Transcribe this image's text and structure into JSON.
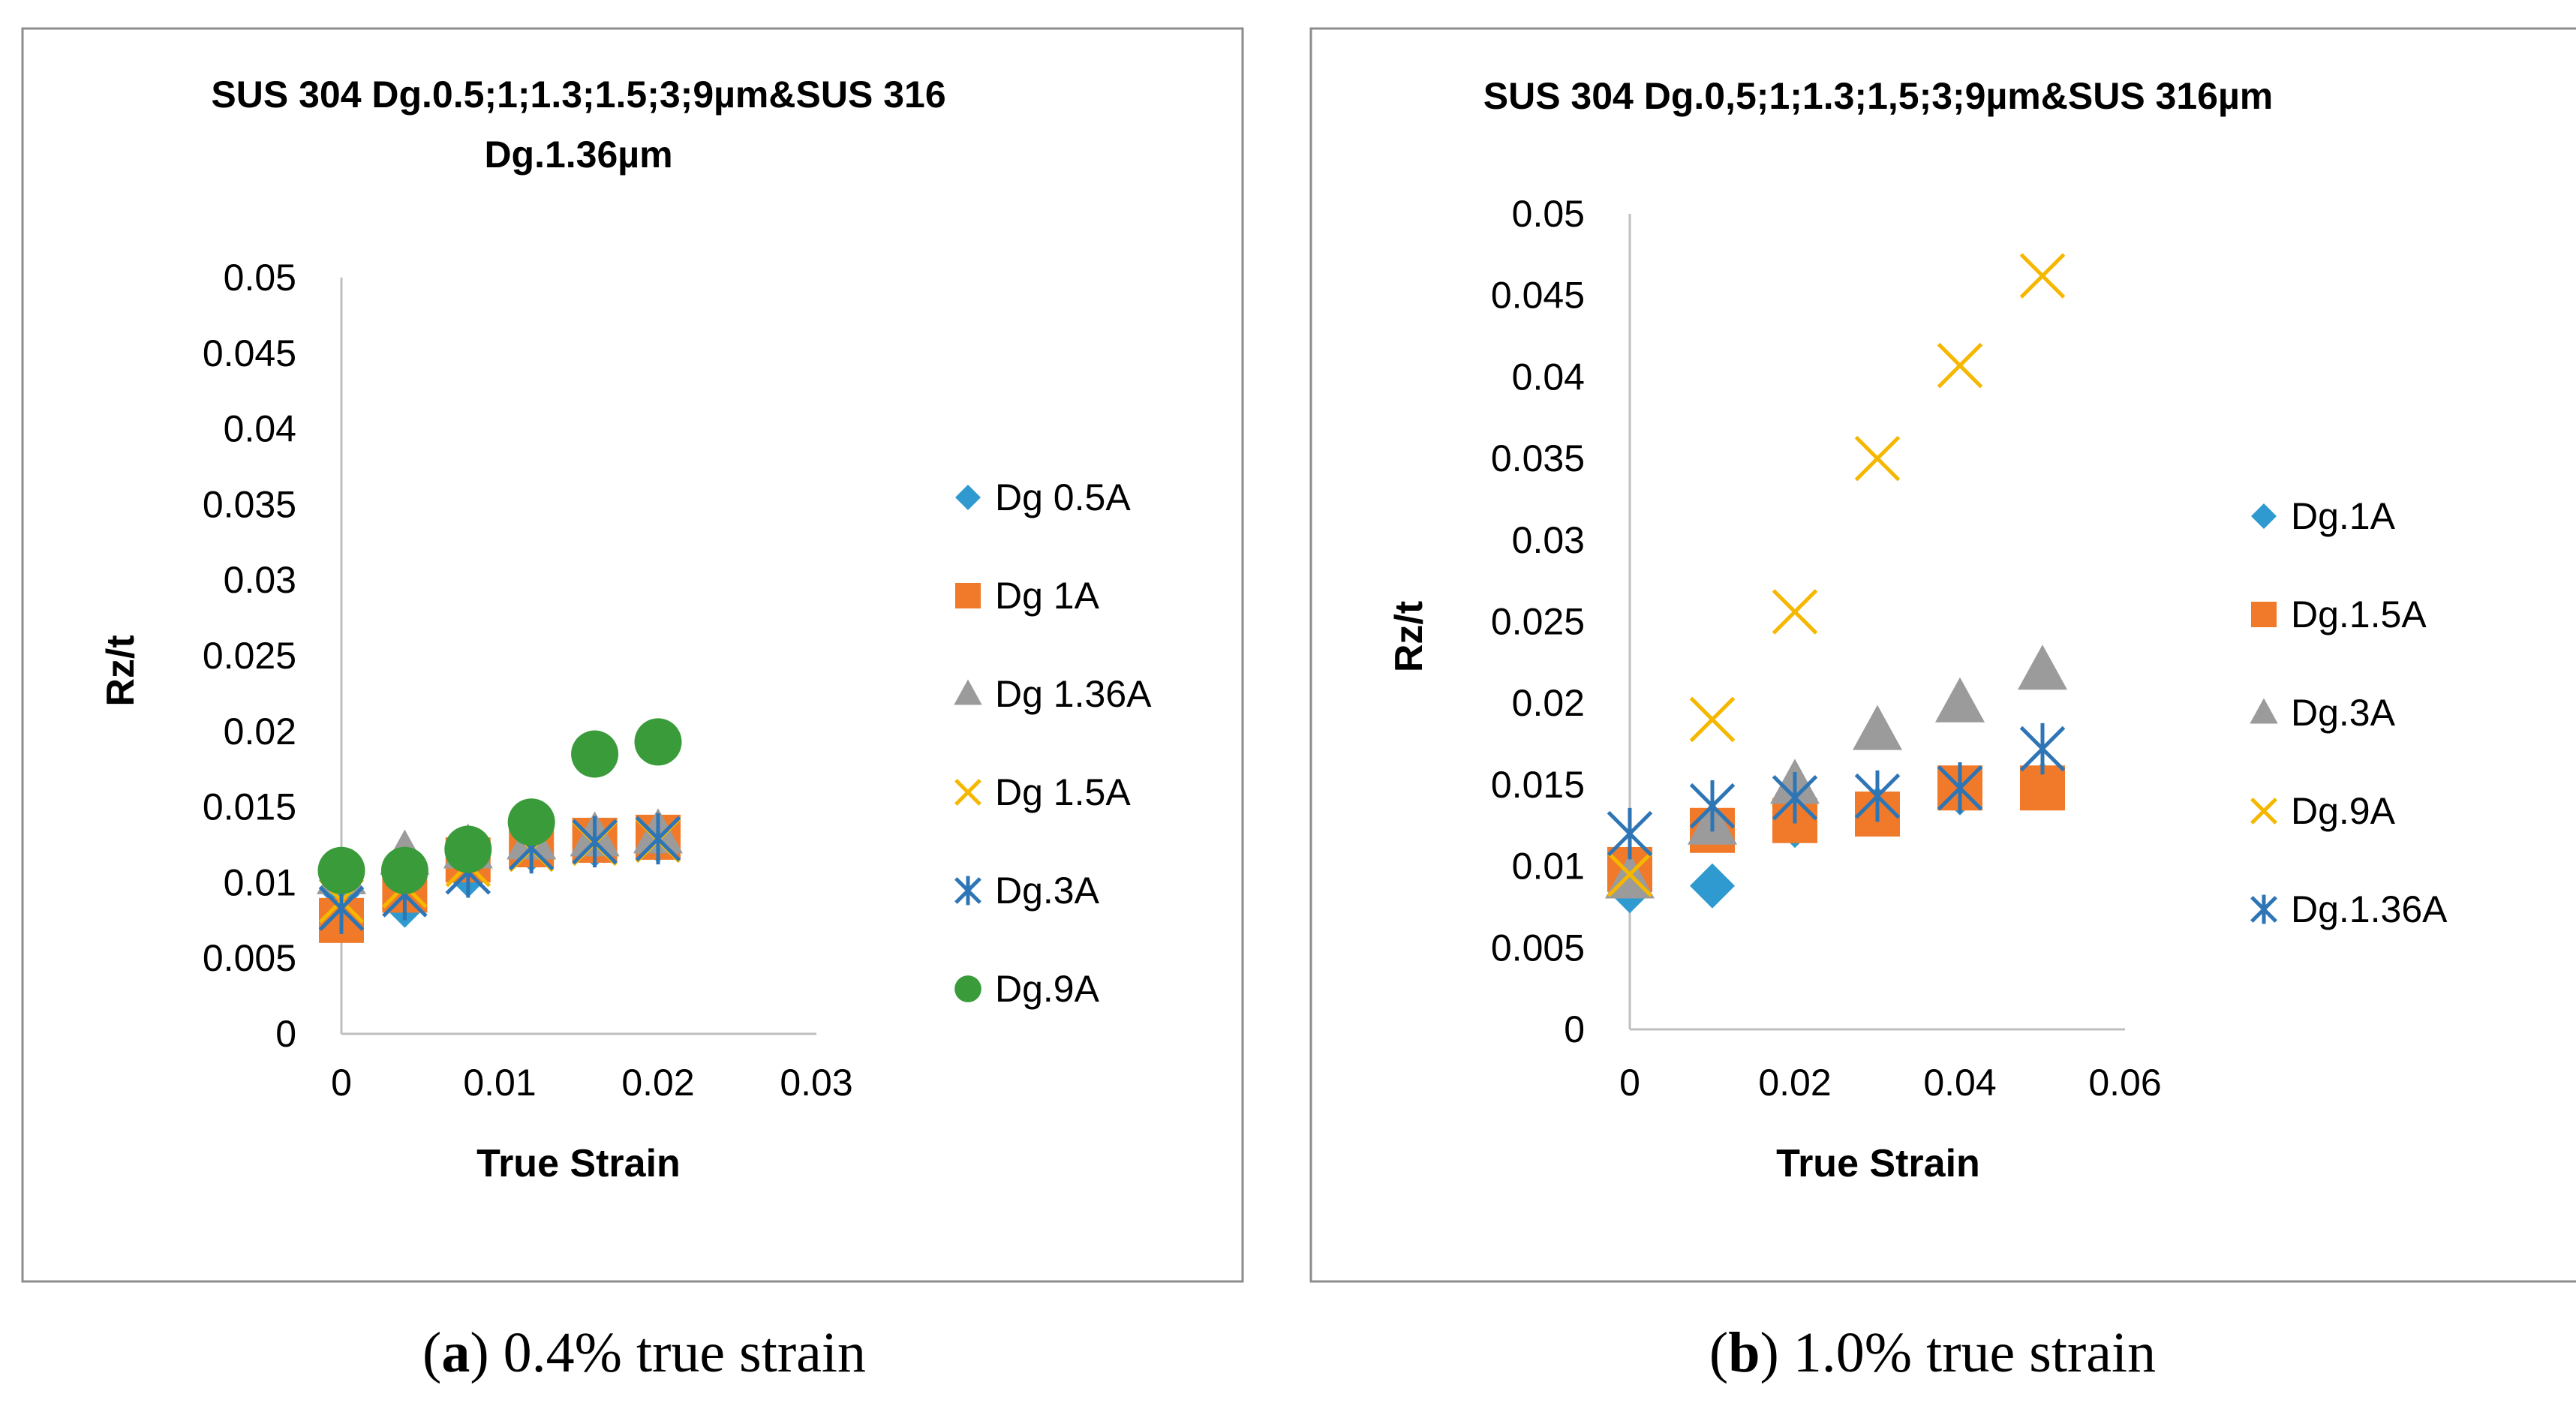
{
  "chart_data": [
    {
      "type": "scatter",
      "panel_id": "a",
      "title_lines": [
        "SUS 304 Dg.0.5;1;1.3;1.5;3;9µm&SUS 316",
        "Dg.1.36µm"
      ],
      "xlabel": "True Strain",
      "ylabel": "Rz/t",
      "xlim": [
        0,
        0.03
      ],
      "ylim": [
        0,
        0.05
      ],
      "x_ticks": [
        "0",
        "0.01",
        "0.02",
        "0.03"
      ],
      "y_ticks": [
        "0",
        "0.005",
        "0.01",
        "0.015",
        "0.02",
        "0.025",
        "0.03",
        "0.035",
        "0.04",
        "0.045",
        "0.05"
      ],
      "legend": "right",
      "series": [
        {
          "name": "Dg 0.5A",
          "marker": "diamond",
          "color": "#2E9AD0",
          "points": [
            [
              0,
              0.0095
            ],
            [
              0.004,
              0.0085
            ],
            [
              0.008,
              0.0105
            ],
            [
              0.012,
              0.0122
            ],
            [
              0.016,
              0.0125
            ],
            [
              0.02,
              0.0128
            ]
          ]
        },
        {
          "name": "Dg 1A",
          "marker": "square",
          "color": "#F07A2A",
          "points": [
            [
              0,
              0.0075
            ],
            [
              0.004,
              0.0095
            ],
            [
              0.008,
              0.0115
            ],
            [
              0.012,
              0.0125
            ],
            [
              0.016,
              0.0128
            ],
            [
              0.02,
              0.013
            ]
          ]
        },
        {
          "name": "Dg 1.36A",
          "marker": "triangle",
          "color": "#9B9B9B",
          "points": [
            [
              0,
              0.0105
            ],
            [
              0.004,
              0.0118
            ],
            [
              0.008,
              0.0122
            ],
            [
              0.012,
              0.0128
            ],
            [
              0.016,
              0.013
            ],
            [
              0.02,
              0.0132
            ]
          ]
        },
        {
          "name": "Dg 1.5A",
          "marker": "x",
          "color": "#F5B700",
          "points": [
            [
              0,
              0.0088
            ],
            [
              0.004,
              0.0098
            ],
            [
              0.008,
              0.0112
            ],
            [
              0.012,
              0.0122
            ],
            [
              0.016,
              0.0126
            ],
            [
              0.02,
              0.0128
            ]
          ]
        },
        {
          "name": "Dg.3A",
          "marker": "asterisk",
          "color": "#2E75B6",
          "points": [
            [
              0,
              0.0083
            ],
            [
              0.004,
              0.0092
            ],
            [
              0.008,
              0.0107
            ],
            [
              0.012,
              0.0123
            ],
            [
              0.016,
              0.0127
            ],
            [
              0.02,
              0.0129
            ]
          ]
        },
        {
          "name": "Dg.9A",
          "marker": "circle",
          "color": "#3A9B3A",
          "points": [
            [
              0,
              0.0108
            ],
            [
              0.004,
              0.0108
            ],
            [
              0.008,
              0.0122
            ],
            [
              0.012,
              0.014
            ],
            [
              0.016,
              0.0185
            ],
            [
              0.02,
              0.0193
            ]
          ]
        }
      ]
    },
    {
      "type": "scatter",
      "panel_id": "b",
      "title_lines": [
        "SUS 304 Dg.0,5;1;1.3;1,5;3;9µm&SUS 316µm"
      ],
      "xlabel": "True Strain",
      "ylabel": "Rz/t",
      "xlim": [
        0,
        0.06
      ],
      "ylim": [
        0,
        0.05
      ],
      "x_ticks": [
        "0",
        "0.02",
        "0.04",
        "0.06"
      ],
      "y_ticks": [
        "0",
        "0.005",
        "0.01",
        "0.015",
        "0.02",
        "0.025",
        "0.03",
        "0.035",
        "0.04",
        "0.045",
        "0.05"
      ],
      "legend": "right",
      "series": [
        {
          "name": "Dg.1A",
          "marker": "diamond",
          "color": "#2E9AD0",
          "points": [
            [
              0,
              0.0085
            ],
            [
              0.01,
              0.0088
            ],
            [
              0.02,
              0.0125
            ],
            [
              0.03,
              0.0135
            ],
            [
              0.04,
              0.0145
            ],
            [
              0.05,
              0.015
            ]
          ]
        },
        {
          "name": "Dg.1.5A",
          "marker": "square",
          "color": "#F07A2A",
          "points": [
            [
              0,
              0.0098
            ],
            [
              0.01,
              0.0122
            ],
            [
              0.02,
              0.0128
            ],
            [
              0.03,
              0.0132
            ],
            [
              0.04,
              0.0148
            ],
            [
              0.05,
              0.0148
            ]
          ]
        },
        {
          "name": "Dg.3A",
          "marker": "triangle",
          "color": "#9B9B9B",
          "points": [
            [
              0,
              0.0092
            ],
            [
              0.01,
              0.0125
            ],
            [
              0.02,
              0.015
            ],
            [
              0.03,
              0.0183
            ],
            [
              0.04,
              0.02
            ],
            [
              0.05,
              0.022
            ]
          ]
        },
        {
          "name": "Dg.9A",
          "marker": "x",
          "color": "#F5B700",
          "points": [
            [
              0,
              0.0095
            ],
            [
              0.01,
              0.019
            ],
            [
              0.02,
              0.0256
            ],
            [
              0.03,
              0.035
            ],
            [
              0.04,
              0.0407
            ],
            [
              0.05,
              0.0462
            ]
          ]
        },
        {
          "name": "Dg.1.36A",
          "marker": "asterisk",
          "color": "#2E75B6",
          "points": [
            [
              0,
              0.012
            ],
            [
              0.01,
              0.0137
            ],
            [
              0.02,
              0.0142
            ],
            [
              0.03,
              0.0143
            ],
            [
              0.04,
              0.0148
            ],
            [
              0.05,
              0.0172
            ]
          ]
        }
      ]
    }
  ],
  "captions": [
    {
      "label": "a",
      "text": " 0.4% true strain"
    },
    {
      "label": "b",
      "text": " 1.0% true strain"
    }
  ]
}
